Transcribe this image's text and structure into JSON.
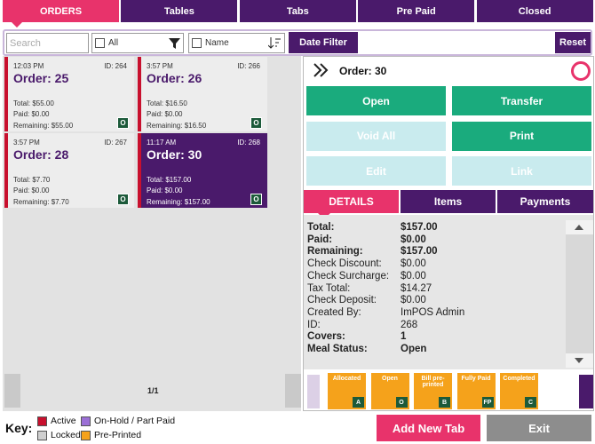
{
  "tabs": [
    "ORDERS",
    "Tables",
    "Tabs",
    "Pre Paid",
    "Closed"
  ],
  "filter": {
    "search": "Search",
    "all": "All",
    "name": "Name",
    "date_filter": "Date Filter",
    "reset": "Reset"
  },
  "orders": [
    {
      "time": "12:03 PM",
      "id": "ID: 264",
      "title": "Order: 25",
      "total": "Total: $55.00",
      "paid": "Paid: $0.00",
      "remaining": "Remaining: $55.00",
      "status": "O"
    },
    {
      "time": "3:57 PM",
      "id": "ID: 266",
      "title": "Order: 26",
      "total": "Total: $16.50",
      "paid": "Paid: $0.00",
      "remaining": "Remaining: $16.50",
      "status": "O"
    },
    {
      "time": "3:57 PM",
      "id": "ID: 267",
      "title": "Order: 28",
      "total": "Total: $7.70",
      "paid": "Paid: $0.00",
      "remaining": "Remaining: $7.70",
      "status": "O"
    },
    {
      "time": "11:17 AM",
      "id": "ID: 268",
      "title": "Order: 30",
      "total": "Total: $157.00",
      "paid": "Paid: $0.00",
      "remaining": "Remaining: $157.00",
      "status": "O"
    }
  ],
  "pager": "1/1",
  "detail": {
    "title": "Order: 30",
    "actions": [
      {
        "label": "Open",
        "enabled": true
      },
      {
        "label": "Transfer",
        "enabled": true
      },
      {
        "label": "Void All",
        "enabled": false
      },
      {
        "label": "Print",
        "enabled": true
      },
      {
        "label": "Edit",
        "enabled": false
      },
      {
        "label": "Link",
        "enabled": false
      }
    ],
    "tabs": [
      "DETAILS",
      "Items",
      "Payments"
    ],
    "rows": [
      {
        "label": "Total:",
        "value": "$157.00",
        "bold": true
      },
      {
        "label": "Paid:",
        "value": "$0.00",
        "bold": true
      },
      {
        "label": "Remaining:",
        "value": "$157.00",
        "bold": true
      },
      {
        "label": "Check Discount:",
        "value": "$0.00",
        "bold": false
      },
      {
        "label": "Check Surcharge:",
        "value": "$0.00",
        "bold": false
      },
      {
        "label": "Tax Total:",
        "value": "$14.27",
        "bold": false
      },
      {
        "label": "Check Deposit:",
        "value": "$0.00",
        "bold": false
      },
      {
        "label": "Created By:",
        "value": "ImPOS Admin",
        "bold": false
      },
      {
        "label": "ID:",
        "value": "268",
        "bold": false
      },
      {
        "label": "Covers:",
        "value": "1",
        "bold": true
      },
      {
        "label": "Meal Status:",
        "value": "Open",
        "bold": true
      }
    ],
    "chips": [
      {
        "label": "Allocated",
        "code": "A"
      },
      {
        "label": "Open",
        "code": "O"
      },
      {
        "label": "Bill pre-printed",
        "code": "B"
      },
      {
        "label": "Fully Paid",
        "code": "FP"
      },
      {
        "label": "Completed",
        "code": "C"
      }
    ]
  },
  "footer": {
    "key": "Key:",
    "items": [
      {
        "label": "Active",
        "color": "#c8102e"
      },
      {
        "label": "On-Hold / Part Paid",
        "color": "#9b6fd6"
      },
      {
        "label": "Locked",
        "color": "#cfcfcf"
      },
      {
        "label": "Pre-Printed",
        "color": "#f5a21b"
      }
    ],
    "add": "Add New Tab",
    "exit": "Exit"
  }
}
